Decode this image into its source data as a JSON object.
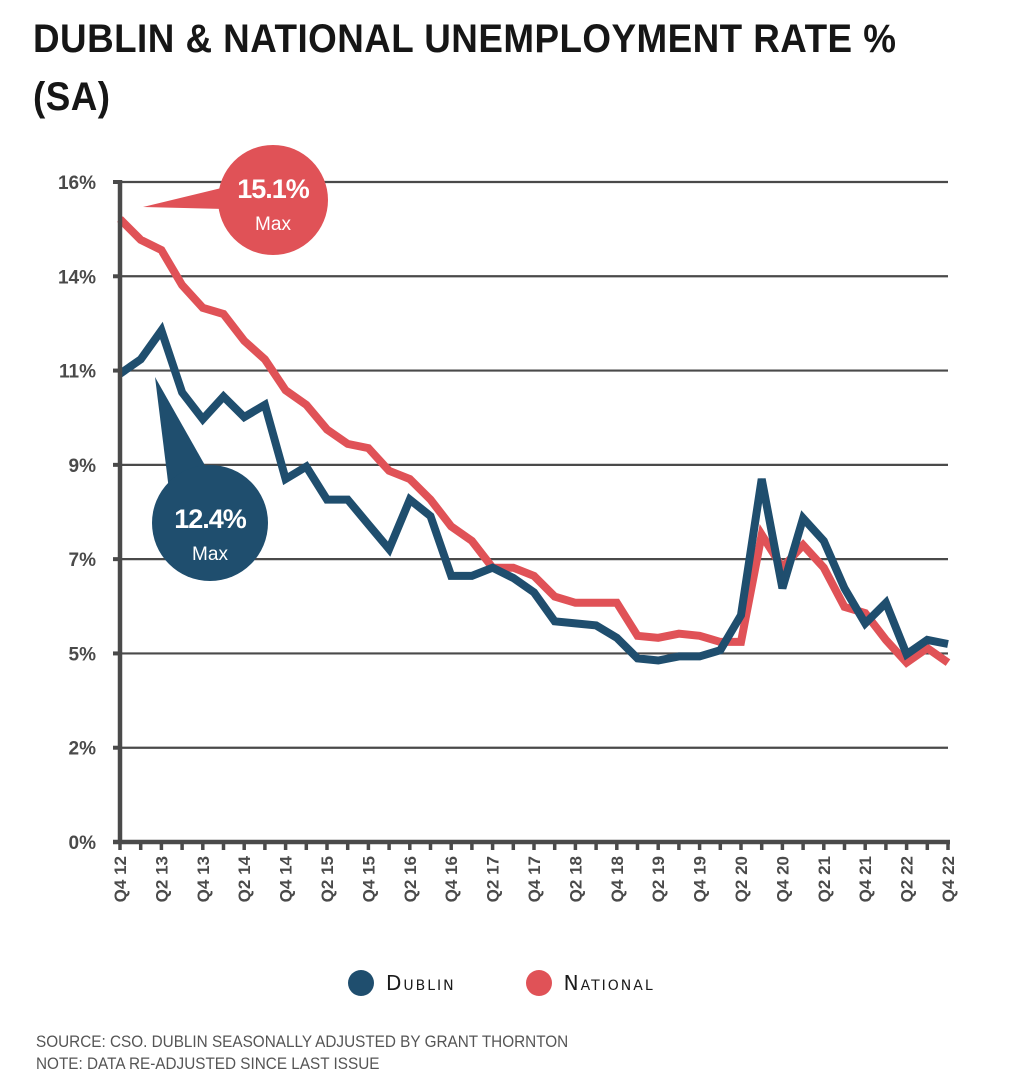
{
  "title": "DUBLIN & NATIONAL UNEMPLOYMENT RATE % (SA)",
  "colors": {
    "dublin": "#1f4e6e",
    "national": "#e05257",
    "axis": "#4a4a4a",
    "grid": "#4a4a4a"
  },
  "chart_data": {
    "type": "line",
    "title": "DUBLIN & NATIONAL UNEMPLOYMENT RATE % (SA)",
    "xlabel": "",
    "ylabel": "",
    "ylim": [
      0,
      16
    ],
    "yticks": [
      0,
      2.2857,
      4.5714,
      6.8571,
      9.1429,
      11.4286,
      13.7143,
      16
    ],
    "ytick_labels": [
      "0%",
      "2%",
      "5%",
      "7%",
      "9%",
      "11%",
      "14%",
      "16%"
    ],
    "grid": true,
    "legend_position": "bottom-center",
    "x": [
      "Q4 12",
      "Q1 13",
      "Q2 13",
      "Q3 13",
      "Q4 13",
      "Q1 14",
      "Q2 14",
      "Q3 14",
      "Q4 14",
      "Q1 15",
      "Q2 15",
      "Q3 15",
      "Q4 15",
      "Q1 16",
      "Q2 16",
      "Q3 16",
      "Q4 16",
      "Q1 17",
      "Q2 17",
      "Q3 17",
      "Q4 17",
      "Q1 18",
      "Q2 18",
      "Q3 18",
      "Q4 18",
      "Q1 19",
      "Q2 19",
      "Q3 19",
      "Q4 19",
      "Q1 20",
      "Q2 20",
      "Q3 20",
      "Q4 20",
      "Q1 21",
      "Q2 21",
      "Q3 21",
      "Q4 21",
      "Q1 22",
      "Q2 22",
      "Q3 22",
      "Q4 22"
    ],
    "xtick_labels": [
      "Q4 12",
      "Q2 13",
      "Q4 13",
      "Q2 14",
      "Q4 14",
      "Q2 15",
      "Q4 15",
      "Q2 16",
      "Q4 16",
      "Q2 17",
      "Q4 17",
      "Q2 18",
      "Q4 18",
      "Q2 19",
      "Q4 19",
      "Q2 20",
      "Q4 20",
      "Q2 21",
      "Q4 21",
      "Q2 22",
      "Q4 22"
    ],
    "series": [
      {
        "name": "Dublin",
        "color": "#1f4e6e",
        "values": [
          11.35,
          11.7,
          12.4,
          10.9,
          10.25,
          10.8,
          10.3,
          10.6,
          8.8,
          9.1,
          8.3,
          8.3,
          7.7,
          7.1,
          8.3,
          7.9,
          6.45,
          6.45,
          6.65,
          6.4,
          6.05,
          5.35,
          5.3,
          5.25,
          4.95,
          4.45,
          4.4,
          4.5,
          4.5,
          4.65,
          5.5,
          8.8,
          6.15,
          7.85,
          7.3,
          6.15,
          5.3,
          5.8,
          4.55,
          4.9,
          4.8
        ]
      },
      {
        "name": "National",
        "color": "#e05257",
        "values": [
          15.1,
          14.6,
          14.35,
          13.5,
          12.95,
          12.8,
          12.15,
          11.7,
          10.95,
          10.6,
          10.0,
          9.65,
          9.55,
          9.0,
          8.8,
          8.3,
          7.65,
          7.3,
          6.65,
          6.65,
          6.45,
          5.95,
          5.8,
          5.8,
          5.8,
          5.0,
          4.95,
          5.05,
          5.0,
          4.85,
          4.85,
          7.45,
          6.65,
          7.2,
          6.65,
          5.7,
          5.55,
          4.9,
          4.35,
          4.7,
          4.35
        ]
      }
    ],
    "annotations": [
      {
        "series": "National",
        "value_label": "15.1%",
        "sub_label": "Max"
      },
      {
        "series": "Dublin",
        "value_label": "12.4%",
        "sub_label": "Max"
      }
    ]
  },
  "legend": [
    {
      "label": "Dublin",
      "color": "#1f4e6e"
    },
    {
      "label": "National",
      "color": "#e05257"
    }
  ],
  "footer": {
    "source": "SOURCE: CSO. DUBLIN SEASONALLY ADJUSTED BY GRANT THORNTON",
    "note": "NOTE: DATA RE-ADJUSTED SINCE LAST ISSUE"
  }
}
